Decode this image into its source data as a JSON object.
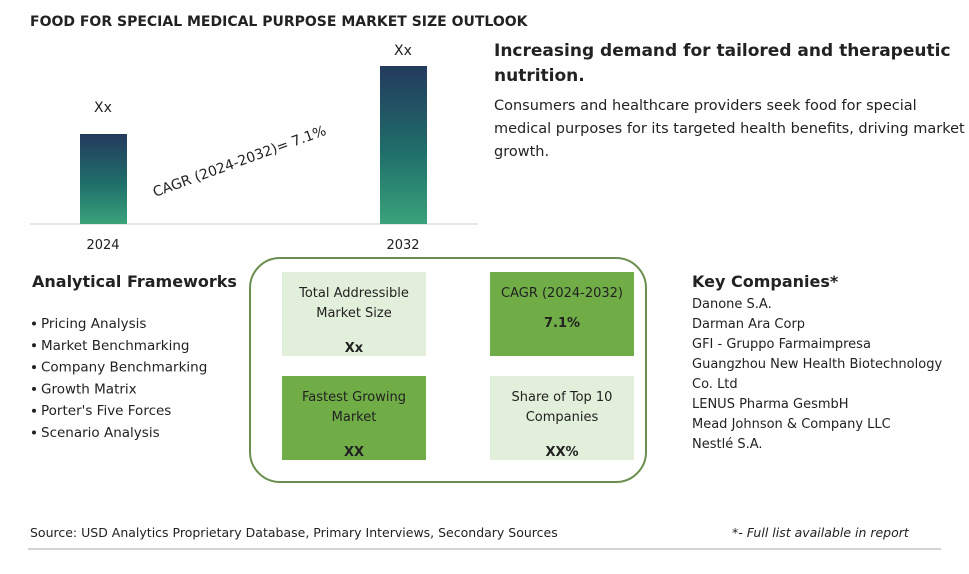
{
  "title": "FOOD FOR SPECIAL MEDICAL PURPOSE MARKET SIZE OUTLOOK",
  "bar_chart": {
    "bars": [
      {
        "year": "2024",
        "label": "Xx"
      },
      {
        "year": "2032",
        "label": "Xx"
      }
    ],
    "cagr": "CAGR (2024-2032)=  7.1%"
  },
  "highlight": {
    "heading": [
      "Increasing demand for tailored and therapeutic",
      "nutrition."
    ],
    "body": [
      "Consumers and healthcare providers seek food for special",
      "medical purposes for its targeted health benefits, driving market",
      "growth."
    ]
  },
  "frameworks": {
    "heading": "Analytical Frameworks",
    "items": [
      "Pricing Analysis",
      "Market Benchmarking",
      "Company Benchmarking",
      "Growth Matrix",
      "Porter's Five Forces",
      "Scenario Analysis"
    ]
  },
  "metrics": [
    {
      "label": [
        "Total Addressible",
        "Market Size"
      ],
      "value": "Xx"
    },
    {
      "label": [
        "CAGR (2024-2032)"
      ],
      "value": "7.1%"
    },
    {
      "label": [
        "Fastest Growing",
        "Market"
      ],
      "value": "XX"
    },
    {
      "label": [
        "Share of Top 10",
        "Companies"
      ],
      "value": "XX%"
    }
  ],
  "companies": {
    "heading": "Key Companies*",
    "items": [
      "Danone S.A.",
      "Darman Ara Corp",
      "GFI - Gruppo Farmaimpresa",
      "Guangzhou New Health Biotechnology",
      "Co. Ltd",
      "LENUS Pharma GesmbH",
      "Mead Johnson & Company LLC",
      "Nestlé S.A."
    ]
  },
  "footer": {
    "source": "Source: USD Analytics Proprietary Database, Primary Interviews, Secondary Sources",
    "note": "*- Full list available in report"
  }
}
